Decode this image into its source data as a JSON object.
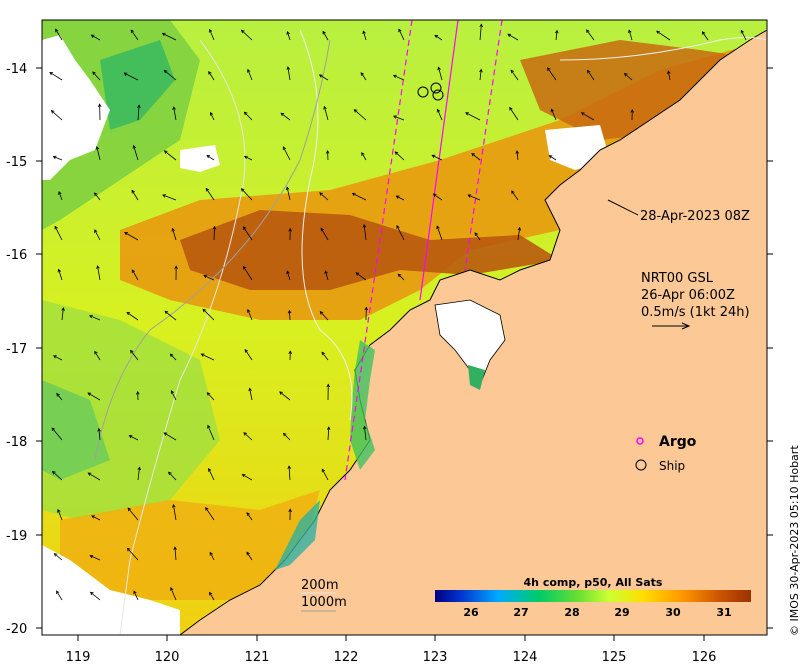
{
  "map": {
    "y_ticks": [
      "-14",
      "-15",
      "-16",
      "-17",
      "-18",
      "-19",
      "-20"
    ],
    "x_ticks": [
      "119",
      "120",
      "121",
      "122",
      "123",
      "124",
      "125",
      "126"
    ],
    "annotation_date": "28-Apr-2023 08Z",
    "current_legend": {
      "line1": "NRT00 GSL",
      "line2": "26-Apr 06:00Z",
      "line3": "0.5m/s (1kt 24h)"
    },
    "markers": {
      "argo_label": "Argo",
      "ship_label": "Ship",
      "argo_color": "#ff00ff"
    },
    "bathymetry": {
      "label_200": "200m",
      "label_1000": "1000m"
    },
    "colorbar": {
      "title": "4h comp, p50, All Sats",
      "ticks": [
        "26",
        "27",
        "28",
        "29",
        "30",
        "31"
      ],
      "colors": [
        "#000080",
        "#0033cc",
        "#00aaff",
        "#00cc66",
        "#66dd33",
        "#ccff33",
        "#ffdd00",
        "#ff9900",
        "#cc5500",
        "#993300"
      ]
    },
    "land_color": "#fcc896",
    "copyright": "© IMOS 30-Apr-2023 05:10 Hobart"
  }
}
